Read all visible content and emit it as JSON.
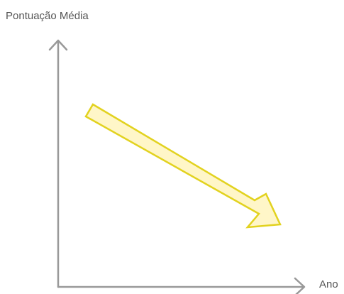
{
  "diagram": {
    "y_axis_label": "Pontuação Média",
    "x_axis_label": "Ano",
    "trend": "decreasing",
    "colors": {
      "axis": "#999999",
      "label": "#555555",
      "arrow_fill": "#fff6c8",
      "arrow_stroke": "#e2d21f"
    }
  }
}
